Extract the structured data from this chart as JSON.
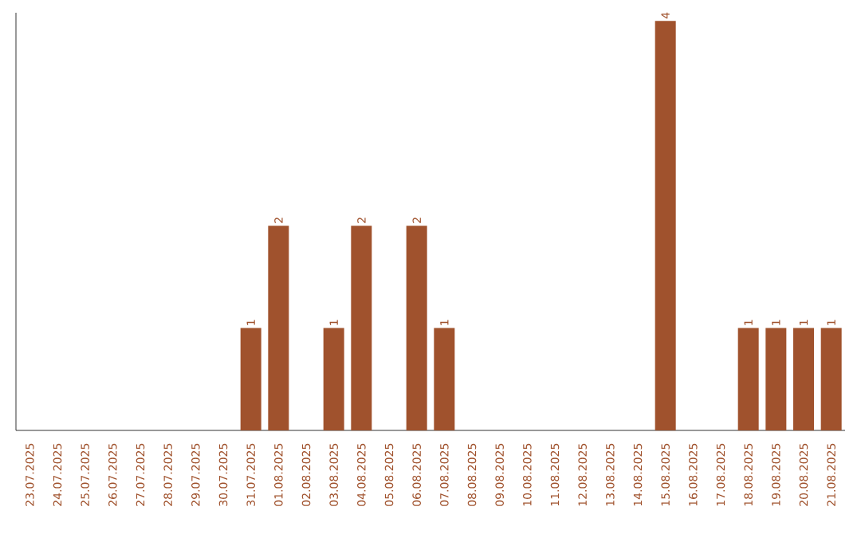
{
  "chart_data": {
    "type": "bar",
    "color": "#a0522d",
    "categories": [
      "23.07.2025",
      "24.07.2025",
      "25.07.2025",
      "26.07.2025",
      "27.07.2025",
      "28.07.2025",
      "29.07.2025",
      "30.07.2025",
      "31.07.2025",
      "01.08.2025",
      "02.08.2025",
      "03.08.2025",
      "04.08.2025",
      "05.08.2025",
      "06.08.2025",
      "07.08.2025",
      "08.08.2025",
      "09.08.2025",
      "10.08.2025",
      "11.08.2025",
      "12.08.2025",
      "13.08.2025",
      "14.08.2025",
      "15.08.2025",
      "16.08.2025",
      "17.08.2025",
      "18.08.2025",
      "19.08.2025",
      "20.08.2025",
      "21.08.2025"
    ],
    "values": [
      0,
      0,
      0,
      0,
      0,
      0,
      0,
      0,
      1,
      2,
      0,
      1,
      2,
      0,
      2,
      1,
      0,
      0,
      0,
      0,
      0,
      0,
      0,
      4,
      0,
      0,
      1,
      1,
      1,
      1
    ],
    "value_labels": [
      null,
      null,
      null,
      null,
      null,
      null,
      null,
      null,
      "1",
      "2",
      null,
      "1",
      "2",
      null,
      "2",
      "1",
      null,
      null,
      null,
      null,
      null,
      null,
      null,
      "4",
      null,
      null,
      "1",
      "1",
      "1",
      "1"
    ],
    "grid": false
  }
}
